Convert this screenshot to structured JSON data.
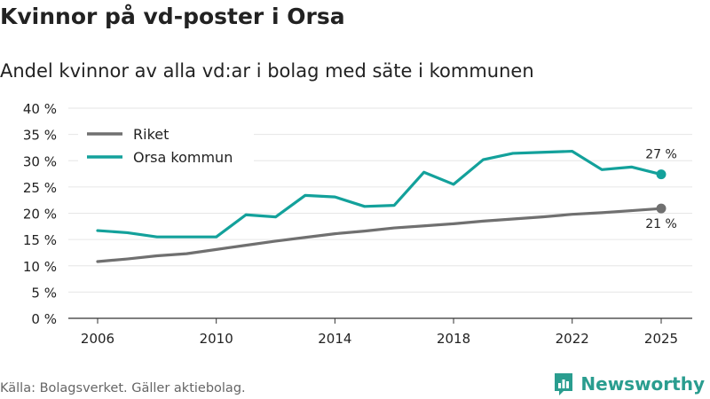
{
  "title": "Kvinnor på vd-poster i Orsa",
  "subtitle": "Andel kvinnor av alla vd:ar i bolag med säte i kommunen",
  "source": "Källa: Bolagsverket. Gäller aktiebolag.",
  "brand": {
    "name": "Newsworthy"
  },
  "colors": {
    "riket": "#707070",
    "orsa": "#13a19b",
    "grid": "#e6e6e6"
  },
  "chart_data": {
    "type": "line",
    "title": "Kvinnor på vd-poster i Orsa",
    "subtitle": "Andel kvinnor av alla vd:ar i bolag med säte i kommunen",
    "xlabel": "",
    "ylabel": "",
    "xlim": [
      2006,
      2025
    ],
    "ylim": [
      0,
      40
    ],
    "x_ticks": [
      2006,
      2010,
      2014,
      2018,
      2022,
      2025
    ],
    "y_ticks": [
      0,
      5,
      10,
      15,
      20,
      25,
      30,
      35,
      40
    ],
    "y_tick_labels": [
      "0 %",
      "5 %",
      "10 %",
      "15 %",
      "20 %",
      "25 %",
      "30 %",
      "35 %",
      "40 %"
    ],
    "grid": true,
    "legend_position": "top-left",
    "x": [
      2006,
      2007,
      2008,
      2009,
      2010,
      2011,
      2012,
      2013,
      2014,
      2015,
      2016,
      2017,
      2018,
      2019,
      2020,
      2021,
      2022,
      2023,
      2024,
      2025
    ],
    "series": [
      {
        "name": "Riket",
        "color": "#707070",
        "values": [
          10.8,
          11.3,
          11.9,
          12.3,
          13.1,
          13.9,
          14.7,
          15.4,
          16.1,
          16.6,
          17.2,
          17.6,
          18.0,
          18.5,
          18.9,
          19.3,
          19.8,
          20.1,
          20.5,
          20.9
        ],
        "end_label": "21 %"
      },
      {
        "name": "Orsa kommun",
        "color": "#13a19b",
        "values": [
          16.7,
          16.3,
          15.5,
          15.5,
          15.5,
          19.7,
          19.3,
          23.4,
          23.1,
          21.3,
          21.5,
          27.8,
          25.5,
          30.2,
          31.4,
          31.6,
          31.8,
          28.3,
          28.8,
          27.4
        ],
        "end_label": "27 %"
      }
    ]
  }
}
